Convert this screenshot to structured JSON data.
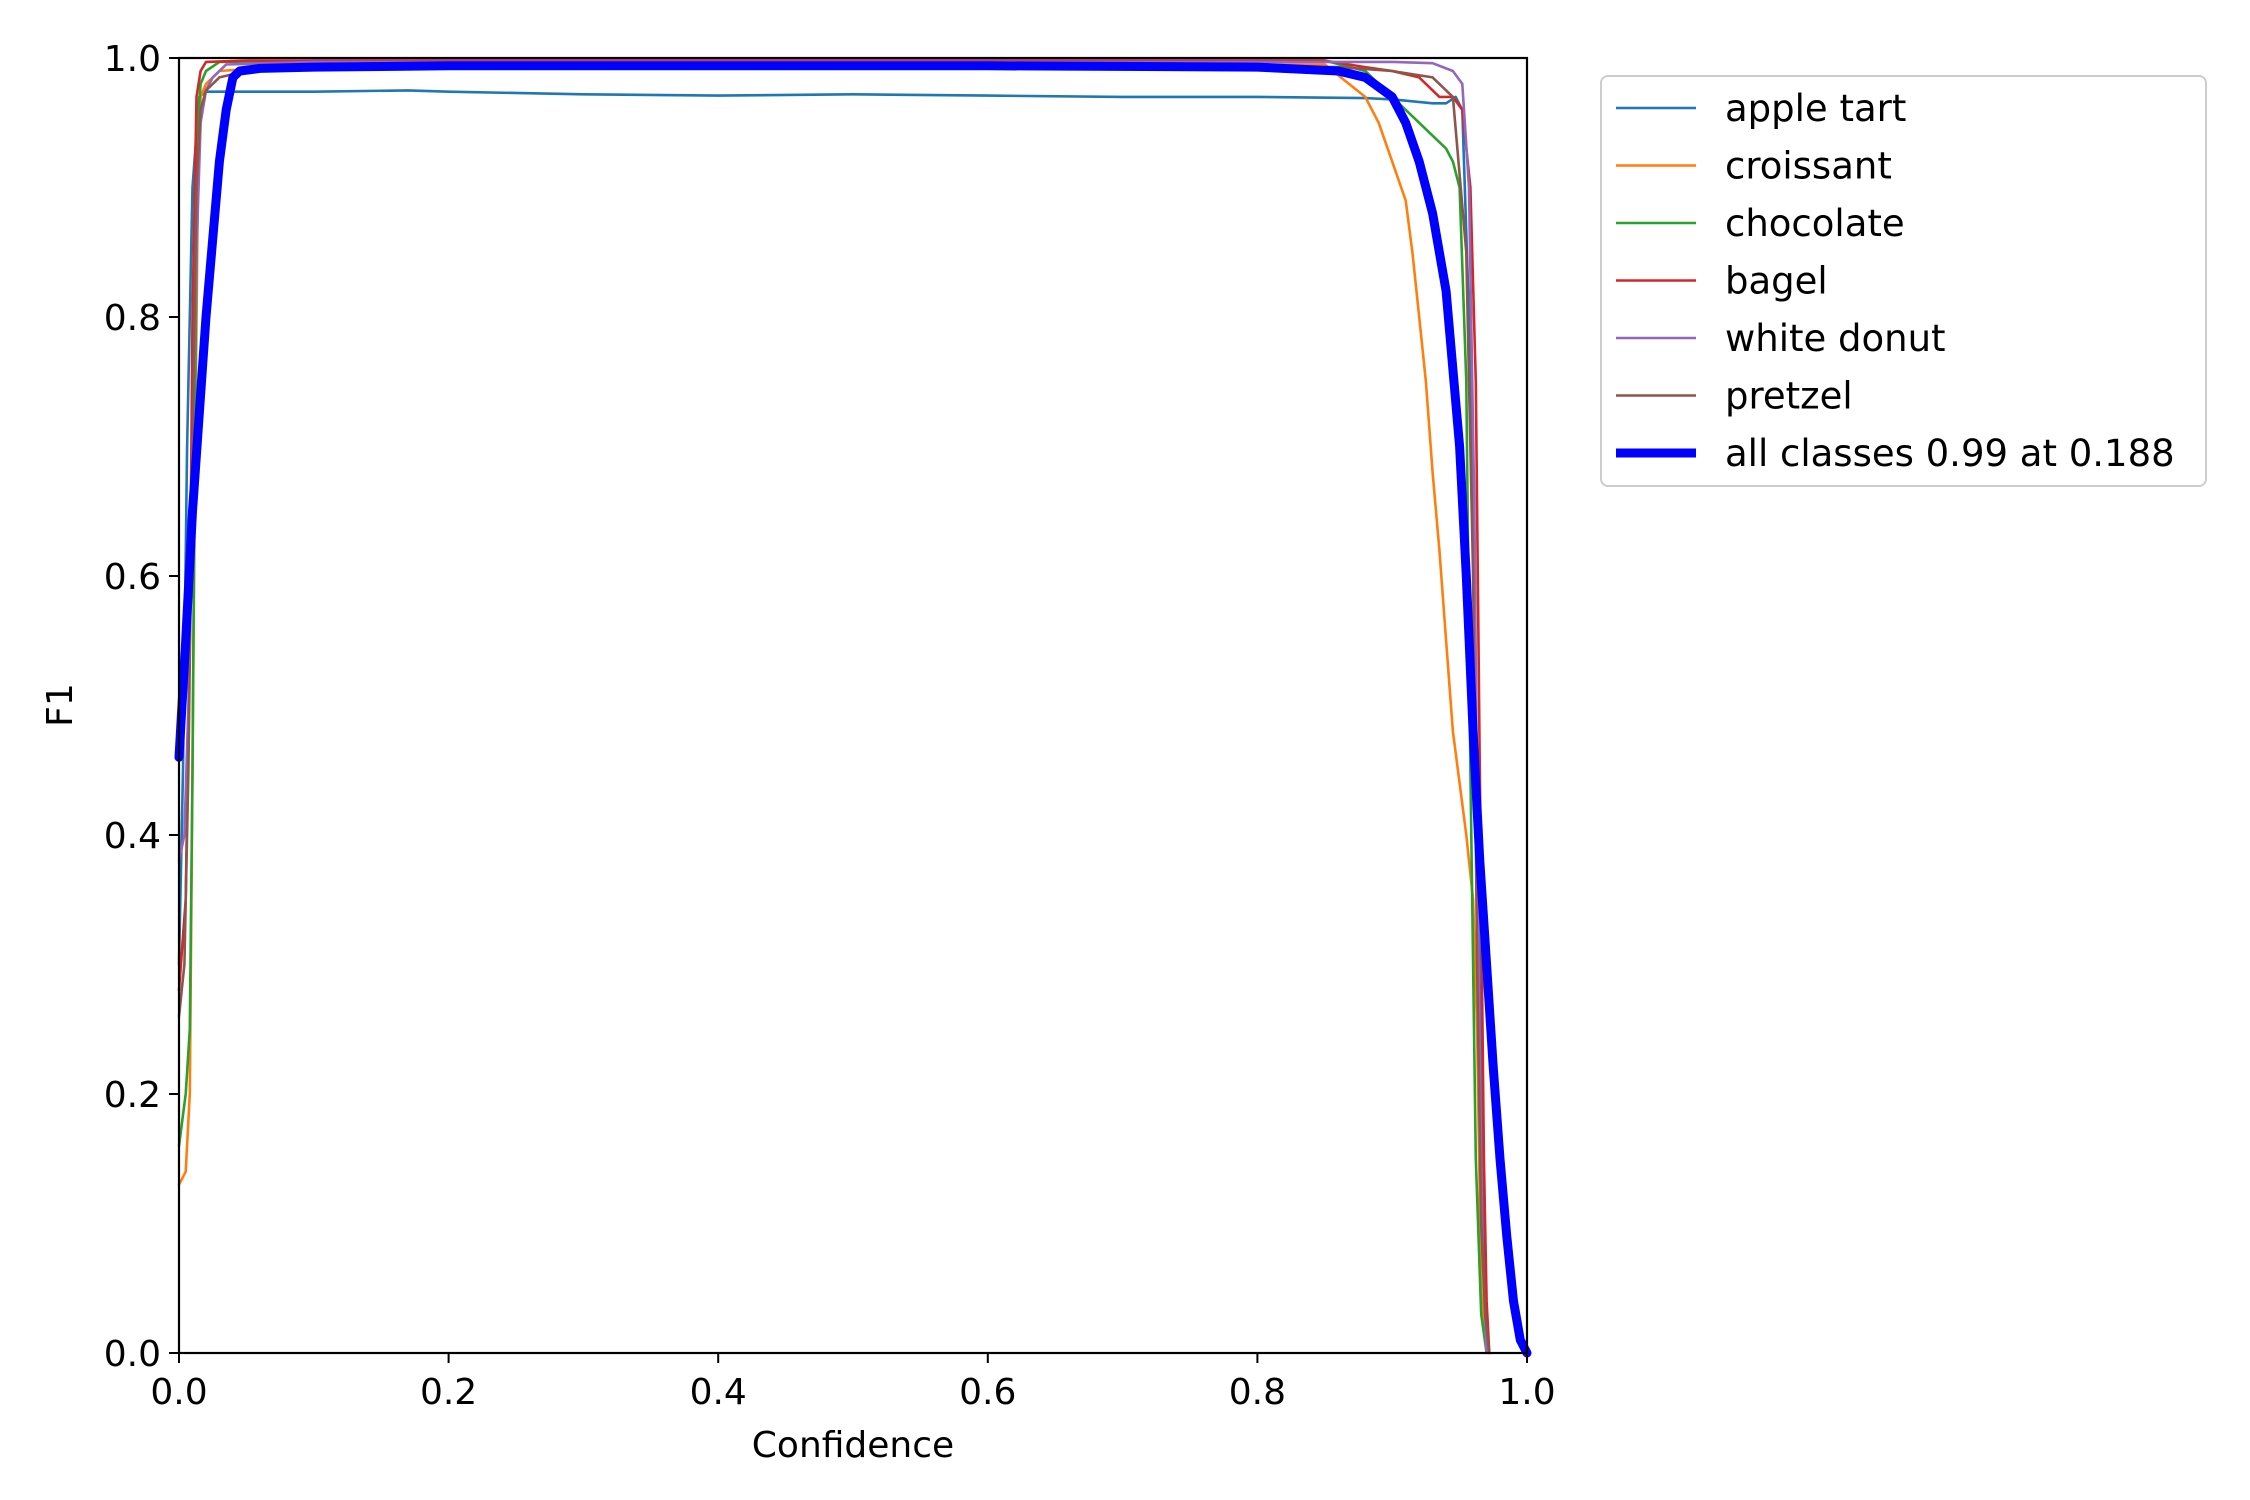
{
  "chart_data": {
    "type": "line",
    "title": "",
    "xlabel": "Confidence",
    "ylabel": "F1",
    "xlim": [
      0,
      1
    ],
    "ylim": [
      0,
      1
    ],
    "xticks": [
      "0.0",
      "0.2",
      "0.4",
      "0.6",
      "0.8",
      "1.0"
    ],
    "yticks": [
      "0.0",
      "0.2",
      "0.4",
      "0.6",
      "0.8",
      "1.0"
    ],
    "grid": false,
    "legend_position": "outside-top-right",
    "series": [
      {
        "name": "apple tart",
        "color": "#1f77b4",
        "width": "thin",
        "x": [
          0,
          0.003,
          0.006,
          0.01,
          0.015,
          0.02,
          0.06,
          0.1,
          0.17,
          0.2,
          0.3,
          0.4,
          0.5,
          0.6,
          0.7,
          0.8,
          0.88,
          0.9,
          0.93,
          0.94,
          0.947,
          0.952,
          0.957,
          0.962,
          0.966,
          0.968,
          0.97,
          0.972
        ],
        "y": [
          0.3,
          0.45,
          0.7,
          0.9,
          0.97,
          0.974,
          0.974,
          0.974,
          0.975,
          0.974,
          0.972,
          0.971,
          0.972,
          0.971,
          0.97,
          0.97,
          0.969,
          0.968,
          0.965,
          0.965,
          0.97,
          0.96,
          0.8,
          0.5,
          0.2,
          0.08,
          0.02,
          0
        ]
      },
      {
        "name": "croissant",
        "color": "#ff7f0e",
        "width": "thin",
        "x": [
          0,
          0.005,
          0.008,
          0.01,
          0.012,
          0.014,
          0.016,
          0.02,
          0.03,
          0.1,
          0.5,
          0.85,
          0.88,
          0.89,
          0.9,
          0.91,
          0.915,
          0.92,
          0.925,
          0.93,
          0.935,
          0.94,
          0.945,
          0.95,
          0.955,
          0.96,
          0.963,
          0.966,
          0.97
        ],
        "y": [
          0.13,
          0.14,
          0.2,
          0.45,
          0.7,
          0.9,
          0.97,
          0.98,
          0.99,
          0.995,
          0.995,
          0.995,
          0.97,
          0.95,
          0.92,
          0.89,
          0.85,
          0.8,
          0.75,
          0.68,
          0.62,
          0.55,
          0.48,
          0.44,
          0.4,
          0.35,
          0.25,
          0.05,
          0
        ]
      },
      {
        "name": "chocolate",
        "color": "#2ca02c",
        "width": "thin",
        "x": [
          0,
          0.005,
          0.008,
          0.01,
          0.012,
          0.014,
          0.016,
          0.02,
          0.03,
          0.1,
          0.5,
          0.85,
          0.88,
          0.9,
          0.92,
          0.93,
          0.94,
          0.945,
          0.95,
          0.955,
          0.958,
          0.962,
          0.966,
          0.97
        ],
        "y": [
          0.16,
          0.2,
          0.25,
          0.45,
          0.75,
          0.95,
          0.98,
          0.99,
          0.997,
          0.998,
          0.998,
          0.998,
          0.99,
          0.97,
          0.95,
          0.94,
          0.93,
          0.92,
          0.9,
          0.75,
          0.45,
          0.15,
          0.03,
          0
        ]
      },
      {
        "name": "bagel",
        "color": "#d62728",
        "width": "thin",
        "x": [
          0,
          0.005,
          0.008,
          0.01,
          0.013,
          0.016,
          0.02,
          0.05,
          0.1,
          0.5,
          0.85,
          0.88,
          0.9,
          0.92,
          0.935,
          0.945,
          0.952,
          0.958,
          0.962,
          0.965,
          0.968,
          0.97,
          0.972
        ],
        "y": [
          0.28,
          0.35,
          0.55,
          0.8,
          0.97,
          0.99,
          0.997,
          0.998,
          0.998,
          0.998,
          0.998,
          0.993,
          0.99,
          0.985,
          0.97,
          0.97,
          0.96,
          0.9,
          0.75,
          0.45,
          0.15,
          0.04,
          0
        ]
      },
      {
        "name": "white donut",
        "color": "#9467bd",
        "width": "thin",
        "x": [
          0,
          0.004,
          0.007,
          0.01,
          0.013,
          0.016,
          0.02,
          0.025,
          0.035,
          0.1,
          0.5,
          0.85,
          0.9,
          0.93,
          0.945,
          0.952,
          0.957,
          0.961,
          0.964,
          0.967,
          0.97
        ],
        "y": [
          0.38,
          0.4,
          0.5,
          0.7,
          0.85,
          0.95,
          0.975,
          0.985,
          0.995,
          0.997,
          0.997,
          0.997,
          0.997,
          0.996,
          0.99,
          0.98,
          0.9,
          0.65,
          0.3,
          0.08,
          0
        ]
      },
      {
        "name": "pretzel",
        "color": "#8c564b",
        "width": "thin",
        "x": [
          0,
          0.004,
          0.007,
          0.01,
          0.013,
          0.016,
          0.02,
          0.03,
          0.05,
          0.1,
          0.5,
          0.86,
          0.9,
          0.93,
          0.945,
          0.955,
          0.96,
          0.963,
          0.966,
          0.969,
          0.972
        ],
        "y": [
          0.26,
          0.3,
          0.45,
          0.7,
          0.9,
          0.96,
          0.975,
          0.985,
          0.99,
          0.993,
          0.993,
          0.993,
          0.99,
          0.985,
          0.97,
          0.85,
          0.6,
          0.3,
          0.1,
          0.03,
          0
        ]
      },
      {
        "name": "all classes 0.99 at 0.188",
        "color": "#0000ff",
        "width": "thick",
        "x": [
          0,
          0.005,
          0.01,
          0.02,
          0.03,
          0.035,
          0.04,
          0.045,
          0.06,
          0.1,
          0.2,
          0.4,
          0.6,
          0.8,
          0.86,
          0.88,
          0.9,
          0.91,
          0.92,
          0.93,
          0.94,
          0.95,
          0.955,
          0.96,
          0.965,
          0.97,
          0.975,
          0.98,
          0.985,
          0.99,
          0.995,
          1.0
        ],
        "y": [
          0.46,
          0.55,
          0.65,
          0.8,
          0.92,
          0.96,
          0.985,
          0.99,
          0.992,
          0.993,
          0.994,
          0.994,
          0.994,
          0.993,
          0.99,
          0.985,
          0.97,
          0.95,
          0.92,
          0.88,
          0.82,
          0.7,
          0.6,
          0.48,
          0.38,
          0.3,
          0.22,
          0.15,
          0.09,
          0.04,
          0.01,
          0
        ]
      }
    ]
  }
}
